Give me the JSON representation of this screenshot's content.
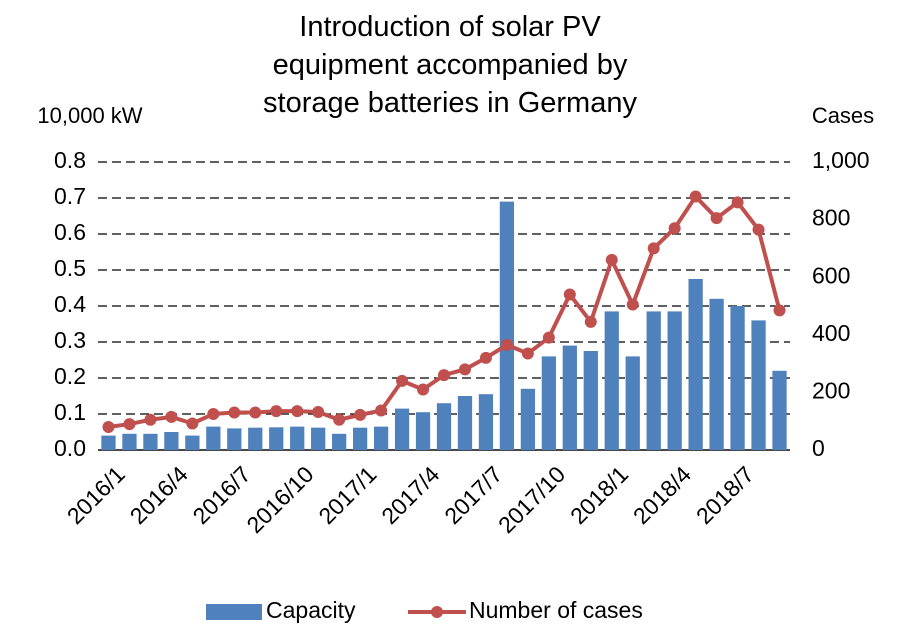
{
  "chart_data": {
    "type": "bar-line",
    "title": "Introduction of solar PV equipment accompanied by storage batteries in Germany",
    "y_label": "10,000 kW",
    "y2_label": "Cases",
    "categories": [
      "2016/1",
      null,
      null,
      "2016/4",
      null,
      null,
      "2016/7",
      null,
      null,
      "2016/10",
      null,
      null,
      "2017/1",
      null,
      null,
      "2017/4",
      null,
      null,
      "2017/7",
      null,
      null,
      "2017/10",
      null,
      null,
      "2018/1",
      null,
      null,
      "2018/4",
      null,
      null,
      "2018/7",
      null,
      null
    ],
    "series": [
      {
        "name": "Capacity",
        "type": "bar",
        "color": "#4f81bd",
        "values": [
          0.04,
          0.045,
          0.045,
          0.05,
          0.04,
          0.065,
          0.06,
          0.062,
          0.063,
          0.065,
          0.062,
          0.045,
          0.062,
          0.065,
          0.115,
          0.105,
          0.13,
          0.15,
          0.155,
          0.69,
          0.17,
          0.26,
          0.29,
          0.275,
          0.385,
          0.26,
          0.385,
          0.385,
          0.475,
          0.42,
          0.4,
          0.36,
          0.22
        ]
      },
      {
        "name": "Number of cases",
        "type": "line",
        "axis": "y2",
        "color": "#c0504d",
        "values": [
          80,
          90,
          105,
          115,
          92,
          125,
          130,
          130,
          135,
          135,
          132,
          105,
          122,
          137,
          240,
          210,
          260,
          280,
          320,
          365,
          335,
          390,
          540,
          445,
          660,
          505,
          700,
          770,
          880,
          805,
          860,
          765,
          485
        ]
      }
    ],
    "ylim": [
      0,
      0.8
    ],
    "yticks": [
      {
        "value": 0,
        "label": "0.0"
      },
      0.1,
      0.2,
      0.3,
      0.4,
      0.5,
      0.6,
      0.7,
      0.8
    ],
    "y2lim": [
      0,
      1000
    ],
    "y2ticks": [
      0,
      200,
      400,
      600,
      800,
      {
        "value": 1000,
        "label": "1,000"
      }
    ],
    "grid": true,
    "legend": "bottom"
  }
}
